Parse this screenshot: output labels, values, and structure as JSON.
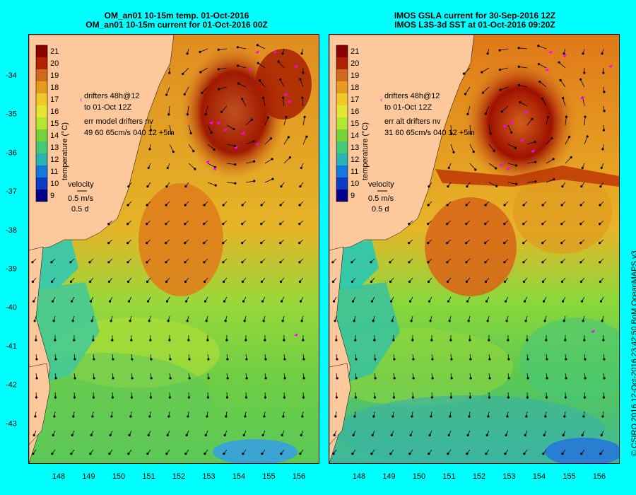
{
  "left_panel": {
    "title_line1": "OM_an01 10-15m temp. 01-Oct-2016",
    "title_line2": "OM_an01 10-15m current for 01-Oct-2016 00Z",
    "drifters_line1": "drifters 48h@12",
    "drifters_line2": "to 01-Oct 12Z",
    "err_line1": "err model drifters nv",
    "err_line2": "49 60 65cm/s 040 12 +5m"
  },
  "right_panel": {
    "title_line1": "IMOS GSLA current for 30-Sep-2016 12Z",
    "title_line2": "IMOS L3S-3d SST at 01-Oct-2016 09:20Z",
    "drifters_line1": "drifters 48h@12",
    "drifters_line2": "to 01-Oct 12Z",
    "err_line1": "err alt drifters nv",
    "err_line2": "31 60 65cm/s 040 12 +5m"
  },
  "colorbar": {
    "label": "temperature (°C)",
    "ticks": [
      "21",
      "20",
      "19",
      "18",
      "17",
      "16",
      "15",
      "14",
      "13",
      "12",
      "11",
      "10",
      "9"
    ],
    "colors": [
      "#8b0000",
      "#b22200",
      "#d2691e",
      "#e69a1e",
      "#f0c828",
      "#e6e632",
      "#b4e632",
      "#78d23c",
      "#46c878",
      "#28b4b4",
      "#1478dc",
      "#0a3cc8",
      "#00008b"
    ]
  },
  "velocity_key": {
    "label": "velocity",
    "speed": "0.5 m/s",
    "duration": "0.5 d"
  },
  "axes": {
    "lat_ticks": [
      "-34",
      "-35",
      "-36",
      "-37",
      "-38",
      "-39",
      "-40",
      "-41",
      "-42",
      "-43"
    ],
    "lon_ticks": [
      "148",
      "149",
      "150",
      "151",
      "152",
      "153",
      "154",
      "155",
      "156"
    ]
  },
  "credit": "© CSIRO 2016   12-Oct-2016 23:42:50 BoM OceanMAPS v3",
  "colors": {
    "background": "#00ffff",
    "land": "#fcc89c",
    "drifter": "#ff00ff",
    "arrow": "#000000"
  }
}
